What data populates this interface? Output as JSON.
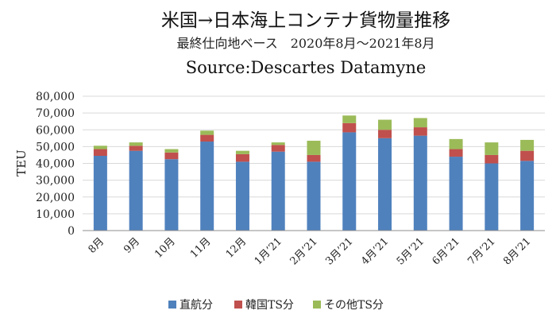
{
  "chart_data": {
    "type": "bar",
    "stacked": true,
    "title": "米国→日本海上コンテナ貨物量推移",
    "subtitle": "最終仕向地ベース　2020年8月～2021年8月",
    "source": "Source:Descartes Datamyne",
    "ylabel": "TEU",
    "xlabel": "",
    "ylim": [
      0,
      80000
    ],
    "yticks": [
      0,
      10000,
      20000,
      30000,
      40000,
      50000,
      60000,
      70000,
      80000
    ],
    "ytick_labels": [
      "0",
      "10,000",
      "20,000",
      "30,000",
      "40,000",
      "50,000",
      "60,000",
      "70,000",
      "80,000"
    ],
    "grid": true,
    "legend_position": "bottom",
    "categories": [
      "8月",
      "9月",
      "10月",
      "11月",
      "12月",
      "1月’21",
      "2月’21",
      "3月’21",
      "4月’21",
      "5月’21",
      "6月’21",
      "7月’21",
      "8月’21"
    ],
    "series": [
      {
        "name": "直航分",
        "color": "#4f81bd",
        "values": [
          44500,
          47500,
          42500,
          53000,
          41000,
          47000,
          41000,
          58500,
          55000,
          56500,
          44000,
          40000,
          41500
        ]
      },
      {
        "name": "韓国TS分",
        "color": "#c0504d",
        "values": [
          4000,
          3000,
          4000,
          4000,
          4500,
          4000,
          4000,
          5500,
          5000,
          5000,
          4500,
          5000,
          6000
        ]
      },
      {
        "name": "その他TS分",
        "color": "#9bbb59",
        "values": [
          2000,
          2000,
          2000,
          2500,
          2000,
          1500,
          8500,
          4500,
          6000,
          5500,
          6000,
          7500,
          6500
        ]
      }
    ]
  }
}
